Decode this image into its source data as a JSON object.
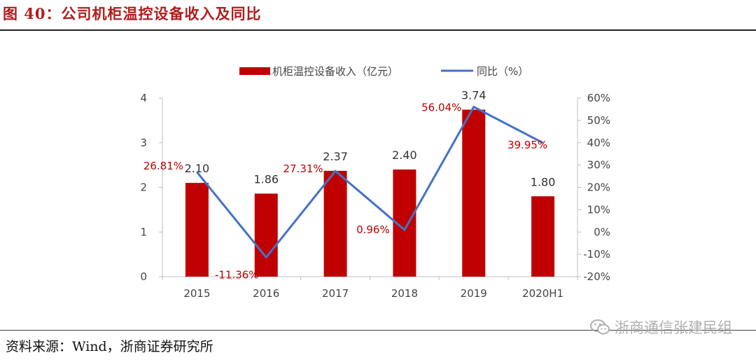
{
  "figure": {
    "title": "图 40：公司机柜温控设备收入及同比",
    "source": "资料来源：Wind，浙商证券研究所",
    "watermark": "浙商通信张建民组"
  },
  "colors": {
    "bar": "#c00000",
    "line": "#4472c4",
    "pct_label": "#c00000",
    "title": "#b11d1d"
  },
  "chart_data": {
    "type": "bar",
    "categories": [
      "2015",
      "2016",
      "2017",
      "2018",
      "2019",
      "2020H1"
    ],
    "series": [
      {
        "name": "机柜温控设备收入（亿元）",
        "type": "bar",
        "axis": "left",
        "values": [
          2.1,
          1.86,
          2.37,
          2.4,
          3.74,
          1.8
        ],
        "labels": [
          "2.10",
          "1.86",
          "2.37",
          "2.40",
          "3.74",
          "1.80"
        ]
      },
      {
        "name": "同比（%）",
        "type": "line",
        "axis": "right",
        "values": [
          26.81,
          -11.36,
          27.31,
          0.96,
          56.04,
          39.95
        ],
        "labels": [
          "26.81%",
          "-11.36%",
          "27.31%",
          "0.96%",
          "56.04%",
          "39.95%"
        ]
      }
    ],
    "y_left": {
      "min": 0,
      "max": 4,
      "ticks": [
        "0",
        "1",
        "2",
        "3",
        "4"
      ]
    },
    "y_right": {
      "min": -20,
      "max": 60,
      "ticks": [
        "-20%",
        "-10%",
        "0%",
        "10%",
        "20%",
        "30%",
        "40%",
        "50%",
        "60%"
      ]
    },
    "legend_position": "top-center",
    "grid": false
  }
}
